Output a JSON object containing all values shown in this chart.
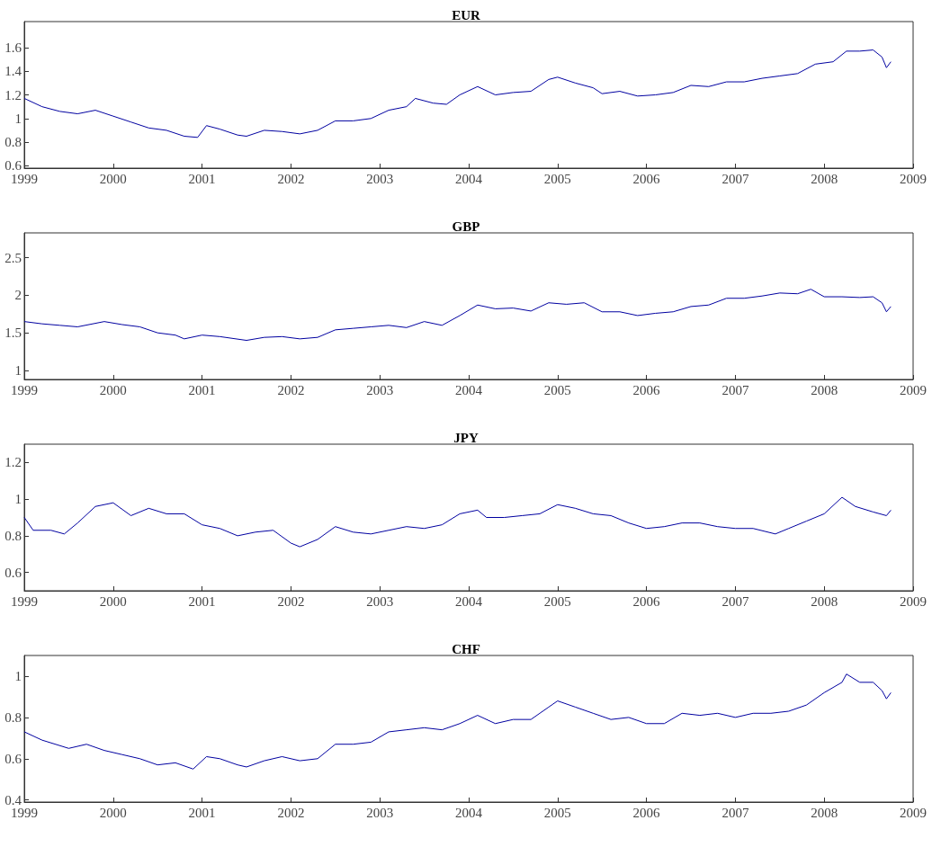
{
  "chart_data": [
    {
      "type": "line",
      "title": "EUR",
      "color": "#0000a0",
      "xlim": [
        1999,
        2009
      ],
      "xticks": [
        1999,
        2000,
        2001,
        2002,
        2003,
        2004,
        2005,
        2006,
        2007,
        2008,
        2009
      ],
      "ylim": [
        0.58,
        1.82
      ],
      "yticks": [
        0.6,
        0.8,
        1,
        1.2,
        1.4,
        1.6
      ],
      "x": [
        1999.0,
        1999.2,
        1999.4,
        1999.6,
        1999.8,
        2000.0,
        2000.2,
        2000.4,
        2000.6,
        2000.8,
        2000.95,
        2001.05,
        2001.2,
        2001.4,
        2001.5,
        2001.7,
        2001.9,
        2002.1,
        2002.3,
        2002.5,
        2002.7,
        2002.9,
        2003.1,
        2003.3,
        2003.4,
        2003.6,
        2003.75,
        2003.9,
        2004.1,
        2004.3,
        2004.5,
        2004.7,
        2004.9,
        2005.0,
        2005.2,
        2005.4,
        2005.5,
        2005.7,
        2005.9,
        2006.1,
        2006.3,
        2006.5,
        2006.7,
        2006.9,
        2007.1,
        2007.3,
        2007.5,
        2007.7,
        2007.9,
        2008.1,
        2008.25,
        2008.4,
        2008.55,
        2008.65,
        2008.7,
        2008.75
      ],
      "values": [
        1.17,
        1.1,
        1.06,
        1.04,
        1.07,
        1.02,
        0.97,
        0.92,
        0.9,
        0.85,
        0.84,
        0.94,
        0.91,
        0.86,
        0.85,
        0.9,
        0.89,
        0.87,
        0.9,
        0.98,
        0.98,
        1.0,
        1.07,
        1.1,
        1.17,
        1.13,
        1.12,
        1.2,
        1.27,
        1.2,
        1.22,
        1.23,
        1.33,
        1.35,
        1.3,
        1.26,
        1.21,
        1.23,
        1.19,
        1.2,
        1.22,
        1.28,
        1.27,
        1.31,
        1.31,
        1.34,
        1.36,
        1.38,
        1.46,
        1.48,
        1.57,
        1.57,
        1.58,
        1.52,
        1.43,
        1.48
      ]
    },
    {
      "type": "line",
      "title": "GBP",
      "color": "#0000a0",
      "xlim": [
        1999,
        2009
      ],
      "xticks": [
        1999,
        2000,
        2001,
        2002,
        2003,
        2004,
        2005,
        2006,
        2007,
        2008,
        2009
      ],
      "ylim": [
        0.88,
        2.83
      ],
      "yticks": [
        1,
        1.5,
        2,
        2.5
      ],
      "x": [
        1999.0,
        1999.2,
        1999.4,
        1999.6,
        1999.9,
        2000.1,
        2000.3,
        2000.5,
        2000.7,
        2000.8,
        2001.0,
        2001.2,
        2001.5,
        2001.7,
        2001.9,
        2002.1,
        2002.3,
        2002.5,
        2002.7,
        2002.9,
        2003.1,
        2003.3,
        2003.5,
        2003.7,
        2003.9,
        2004.1,
        2004.3,
        2004.5,
        2004.7,
        2004.9,
        2005.1,
        2005.3,
        2005.5,
        2005.7,
        2005.9,
        2006.1,
        2006.3,
        2006.5,
        2006.7,
        2006.9,
        2007.1,
        2007.3,
        2007.5,
        2007.7,
        2007.85,
        2008.0,
        2008.2,
        2008.4,
        2008.55,
        2008.65,
        2008.7,
        2008.75
      ],
      "values": [
        1.65,
        1.62,
        1.6,
        1.58,
        1.65,
        1.61,
        1.58,
        1.5,
        1.47,
        1.42,
        1.47,
        1.45,
        1.4,
        1.44,
        1.45,
        1.42,
        1.44,
        1.54,
        1.56,
        1.58,
        1.6,
        1.57,
        1.65,
        1.6,
        1.73,
        1.87,
        1.82,
        1.83,
        1.79,
        1.9,
        1.88,
        1.9,
        1.78,
        1.78,
        1.73,
        1.76,
        1.78,
        1.85,
        1.87,
        1.96,
        1.96,
        1.99,
        2.03,
        2.02,
        2.08,
        1.98,
        1.98,
        1.97,
        1.98,
        1.9,
        1.78,
        1.85
      ]
    },
    {
      "type": "line",
      "title": "JPY",
      "color": "#0000a0",
      "xlim": [
        1999,
        2009
      ],
      "xticks": [
        1999,
        2000,
        2001,
        2002,
        2003,
        2004,
        2005,
        2006,
        2007,
        2008,
        2009
      ],
      "ylim": [
        0.5,
        1.3
      ],
      "yticks": [
        0.6,
        0.8,
        1,
        1.2
      ],
      "x": [
        1999.0,
        1999.1,
        1999.3,
        1999.45,
        1999.6,
        1999.8,
        2000.0,
        2000.2,
        2000.4,
        2000.6,
        2000.8,
        2001.0,
        2001.2,
        2001.4,
        2001.6,
        2001.8,
        2002.0,
        2002.1,
        2002.3,
        2002.5,
        2002.7,
        2002.9,
        2003.1,
        2003.3,
        2003.5,
        2003.7,
        2003.9,
        2004.1,
        2004.2,
        2004.4,
        2004.6,
        2004.8,
        2005.0,
        2005.2,
        2005.4,
        2005.6,
        2005.8,
        2006.0,
        2006.2,
        2006.4,
        2006.6,
        2006.8,
        2007.0,
        2007.2,
        2007.45,
        2007.6,
        2007.8,
        2008.0,
        2008.2,
        2008.35,
        2008.55,
        2008.7,
        2008.75
      ],
      "values": [
        0.9,
        0.83,
        0.83,
        0.81,
        0.87,
        0.96,
        0.98,
        0.91,
        0.95,
        0.92,
        0.92,
        0.86,
        0.84,
        0.8,
        0.82,
        0.83,
        0.76,
        0.74,
        0.78,
        0.85,
        0.82,
        0.81,
        0.83,
        0.85,
        0.84,
        0.86,
        0.92,
        0.94,
        0.9,
        0.9,
        0.91,
        0.92,
        0.97,
        0.95,
        0.92,
        0.91,
        0.87,
        0.84,
        0.85,
        0.87,
        0.87,
        0.85,
        0.84,
        0.84,
        0.81,
        0.84,
        0.88,
        0.92,
        1.01,
        0.96,
        0.93,
        0.91,
        0.94
      ]
    },
    {
      "type": "line",
      "title": "CHF",
      "color": "#0000a0",
      "xlim": [
        1999,
        2009
      ],
      "xticks": [
        1999,
        2000,
        2001,
        2002,
        2003,
        2004,
        2005,
        2006,
        2007,
        2008,
        2009
      ],
      "ylim": [
        0.39,
        1.1
      ],
      "yticks": [
        0.4,
        0.6,
        0.8,
        1
      ],
      "x": [
        1999.0,
        1999.2,
        1999.5,
        1999.7,
        1999.9,
        2000.1,
        2000.3,
        2000.5,
        2000.7,
        2000.9,
        2001.05,
        2001.2,
        2001.4,
        2001.5,
        2001.7,
        2001.9,
        2002.1,
        2002.3,
        2002.5,
        2002.7,
        2002.9,
        2003.1,
        2003.3,
        2003.5,
        2003.7,
        2003.9,
        2004.1,
        2004.3,
        2004.5,
        2004.7,
        2004.9,
        2005.0,
        2005.2,
        2005.4,
        2005.6,
        2005.8,
        2006.0,
        2006.2,
        2006.4,
        2006.6,
        2006.8,
        2007.0,
        2007.2,
        2007.4,
        2007.6,
        2007.8,
        2008.0,
        2008.2,
        2008.25,
        2008.4,
        2008.55,
        2008.65,
        2008.7,
        2008.75
      ],
      "values": [
        0.73,
        0.69,
        0.65,
        0.67,
        0.64,
        0.62,
        0.6,
        0.57,
        0.58,
        0.55,
        0.61,
        0.6,
        0.57,
        0.56,
        0.59,
        0.61,
        0.59,
        0.6,
        0.67,
        0.67,
        0.68,
        0.73,
        0.74,
        0.75,
        0.74,
        0.77,
        0.81,
        0.77,
        0.79,
        0.79,
        0.85,
        0.88,
        0.85,
        0.82,
        0.79,
        0.8,
        0.77,
        0.77,
        0.82,
        0.81,
        0.82,
        0.8,
        0.82,
        0.82,
        0.83,
        0.86,
        0.92,
        0.97,
        1.01,
        0.97,
        0.97,
        0.93,
        0.89,
        0.92
      ]
    }
  ]
}
